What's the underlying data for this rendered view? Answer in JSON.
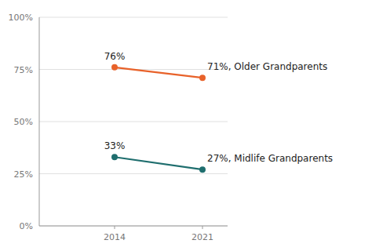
{
  "chart_data": {
    "type": "line",
    "x": [
      2014,
      2021
    ],
    "series": [
      {
        "color": "#E8622A",
        "values": [
          76,
          71
        ]
      },
      {
        "color": "#1F6E6E",
        "values": [
          33,
          27
        ]
      }
    ],
    "annotations": [
      {
        "text": "76%",
        "x": 2014,
        "y": 76
      },
      {
        "text": "71%, Older Grandparents",
        "x": 2021,
        "y": 71
      },
      {
        "text": "33%",
        "x": 2014,
        "y": 33
      },
      {
        "text": "27%, Midlife Grandparents",
        "x": 2021,
        "y": 27
      }
    ],
    "xlim": [
      2008,
      2023
    ],
    "xticks": [
      2014,
      2021
    ],
    "ylim": [
      0,
      100
    ],
    "yticks": [
      {
        "value": 0,
        "label": "0%"
      },
      {
        "value": 25,
        "label": "25%"
      },
      {
        "value": 50,
        "label": "50%"
      },
      {
        "value": 75,
        "label": "75%"
      },
      {
        "value": 100,
        "label": "100%"
      }
    ],
    "grid": true,
    "marker": "circle"
  }
}
